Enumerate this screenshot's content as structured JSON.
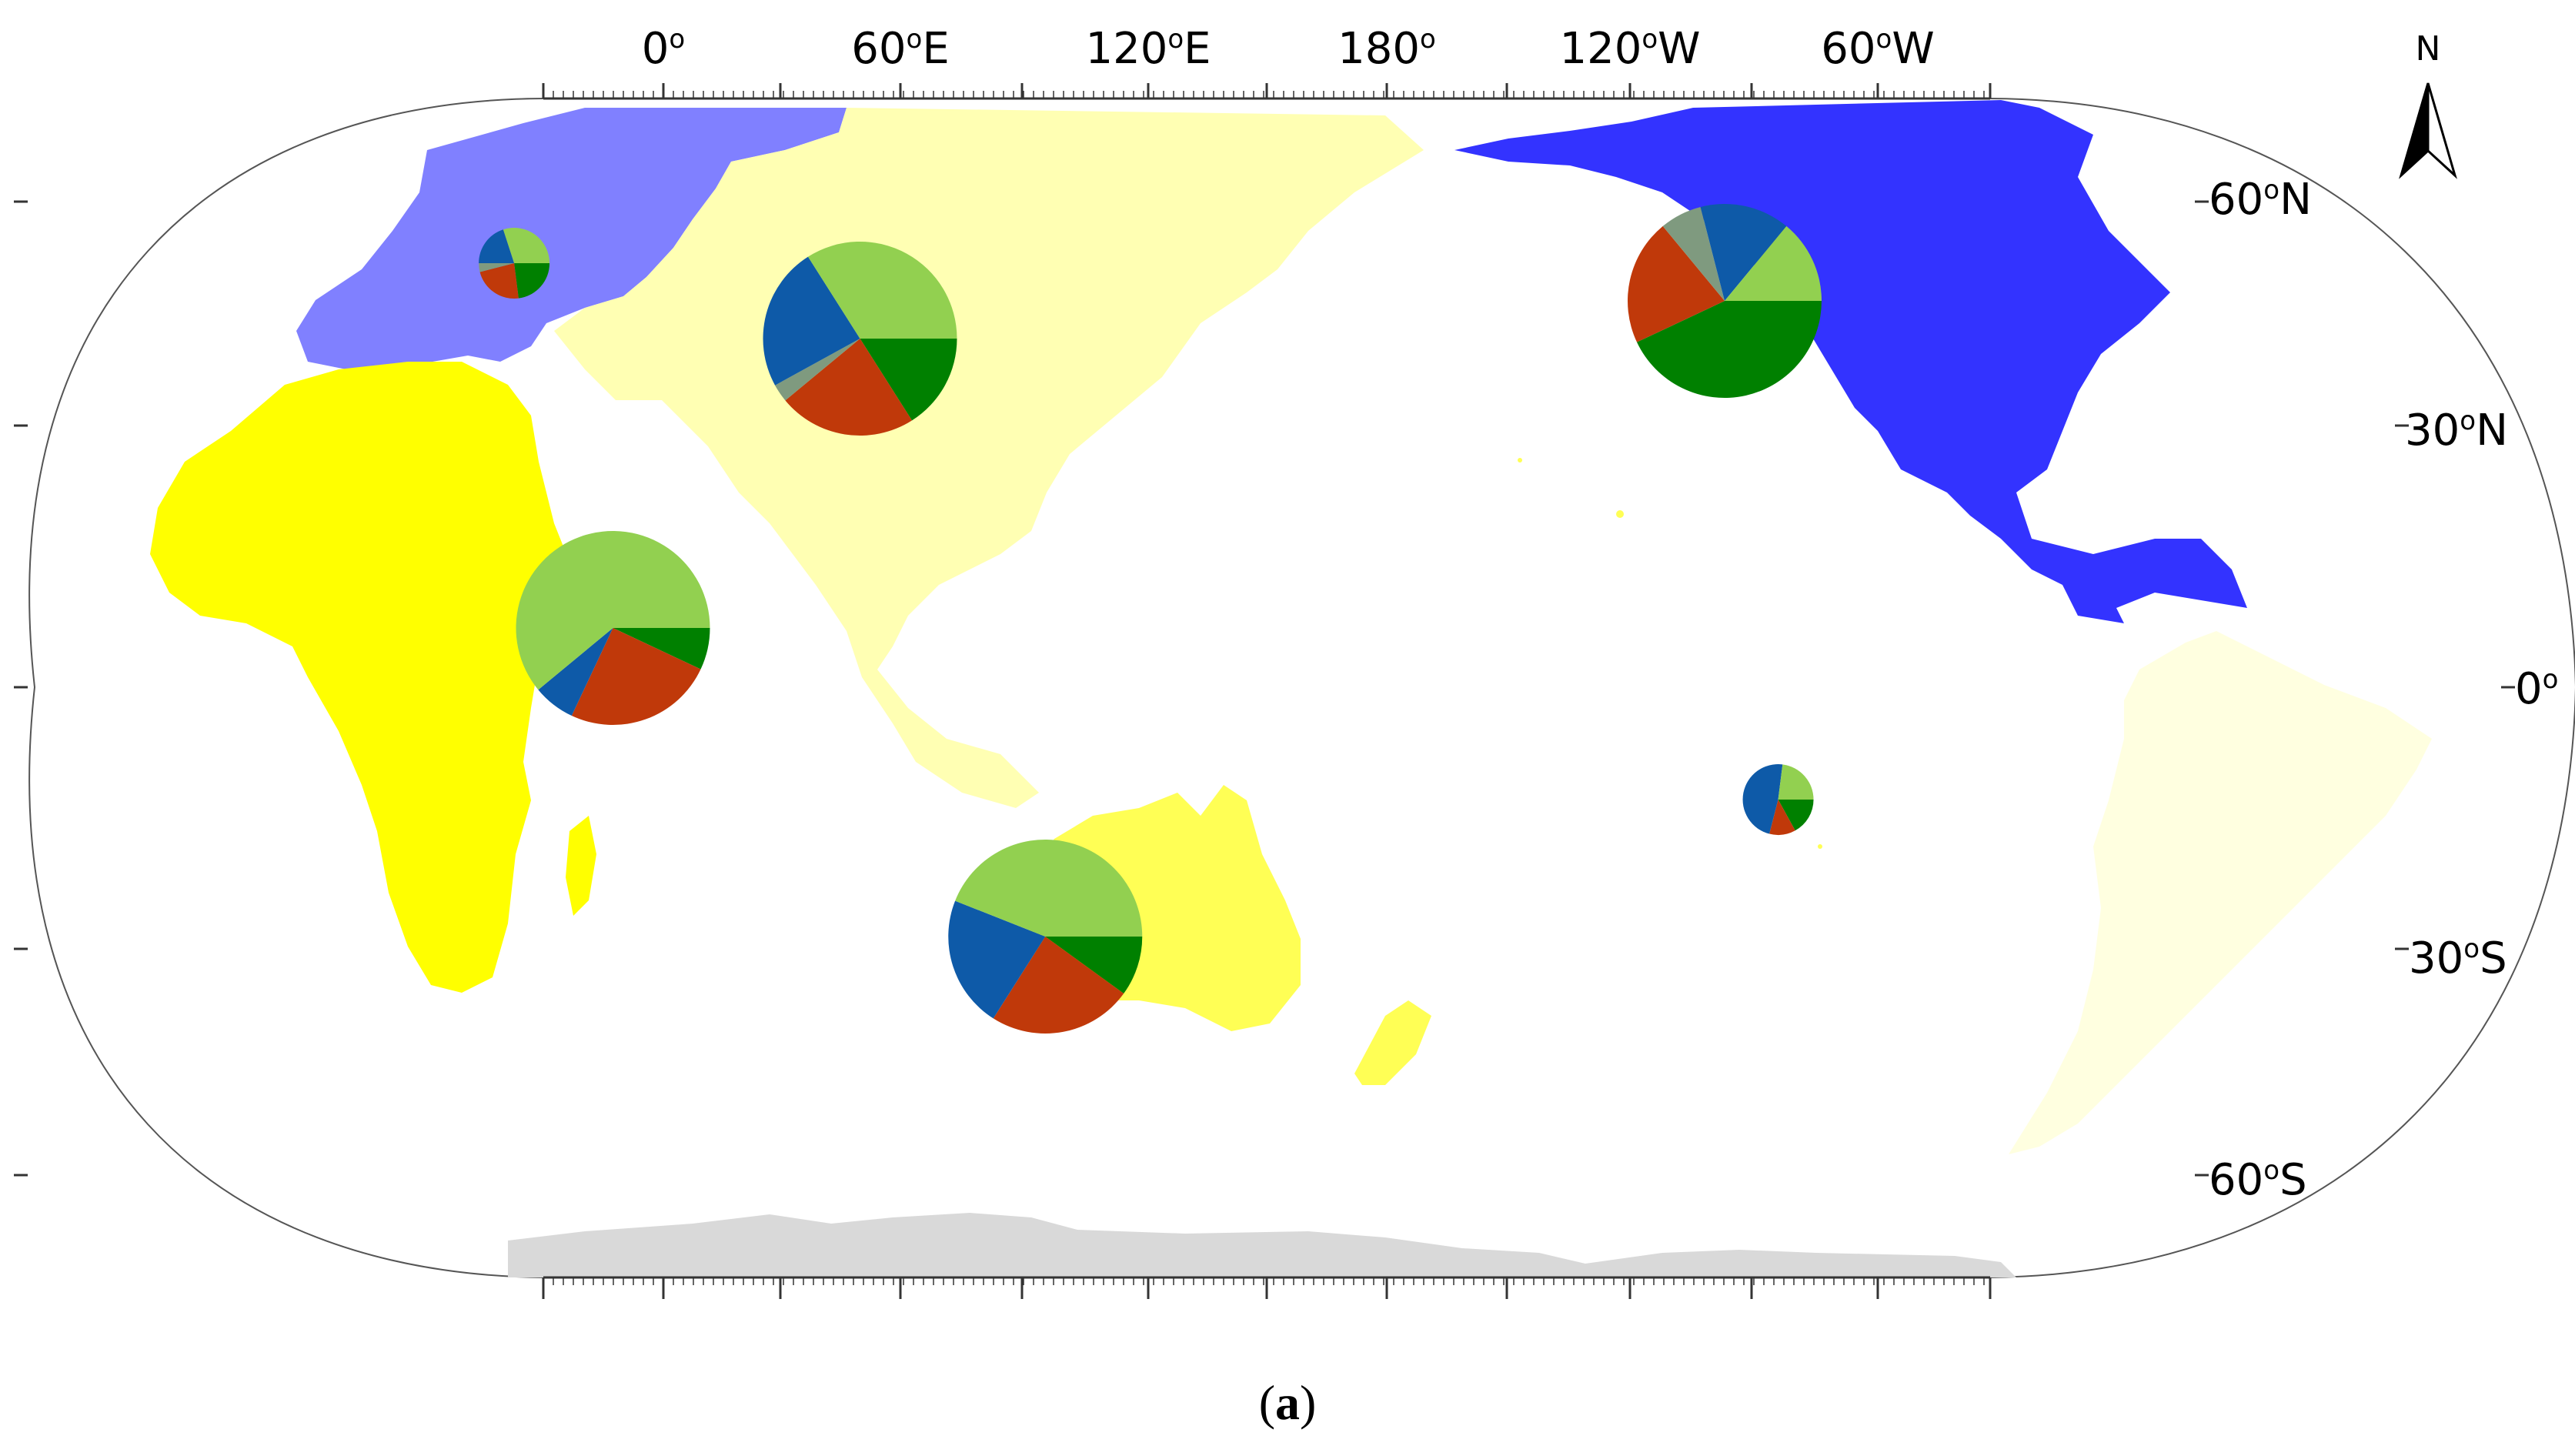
{
  "figure": {
    "panel_label_open": "(",
    "panel_label_letter": "a",
    "panel_label_close": ")",
    "north_label": "N"
  },
  "axes": {
    "top_longitude_labels": [
      {
        "value": 0,
        "number": "0",
        "suffix": ""
      },
      {
        "value": 60,
        "number": "60",
        "suffix": "E"
      },
      {
        "value": 120,
        "number": "120",
        "suffix": "E"
      },
      {
        "value": 180,
        "number": "180",
        "suffix": ""
      },
      {
        "value": -120,
        "number": "120",
        "suffix": "W"
      },
      {
        "value": -60,
        "number": "60",
        "suffix": "W"
      }
    ],
    "right_latitude_labels": [
      {
        "value": 60,
        "number": "60",
        "suffix": "N"
      },
      {
        "value": 30,
        "number": "30",
        "suffix": "N"
      },
      {
        "value": 0,
        "number": "0",
        "suffix": ""
      },
      {
        "value": -30,
        "number": "30",
        "suffix": "S"
      },
      {
        "value": -60,
        "number": "60",
        "suffix": "S"
      }
    ],
    "degree_symbol": "o",
    "projection": "Robinson, Pacific-centred (central meridian 150°E)"
  },
  "colors": {
    "europe": "#8080FF",
    "asia": "#FFFFB3",
    "africa": "#FFFF00",
    "oceania": "#FFFF55",
    "north_america": "#3333FF",
    "south_america": "#FFFFE0",
    "antarctica": "#D9D9D9",
    "slice_light_green": "#92D050",
    "slice_dark_green": "#008000",
    "slice_red": "#C0390A",
    "slice_grey": "#7F9A7F",
    "slice_blue": "#0E5AA8"
  },
  "chart_data": {
    "type": "pie",
    "pies": [
      {
        "region": "Europe",
        "lon": -4,
        "lat": 50,
        "size": "small",
        "slices": [
          {
            "category": "dark-green",
            "value": 23
          },
          {
            "category": "red",
            "value": 23
          },
          {
            "category": "grey",
            "value": 4
          },
          {
            "category": "blue",
            "value": 20
          },
          {
            "category": "light-green",
            "value": 30
          }
        ]
      },
      {
        "region": "Asia",
        "lon": 80,
        "lat": 40,
        "size": "large",
        "slices": [
          {
            "category": "dark-green",
            "value": 16
          },
          {
            "category": "red",
            "value": 23
          },
          {
            "category": "grey",
            "value": 3
          },
          {
            "category": "blue",
            "value": 24
          },
          {
            "category": "light-green",
            "value": 34
          }
        ]
      },
      {
        "region": "Africa",
        "lon": 20,
        "lat": 7,
        "size": "large",
        "slices": [
          {
            "category": "dark-green",
            "value": 7
          },
          {
            "category": "red",
            "value": 25
          },
          {
            "category": "blue",
            "value": 7
          },
          {
            "category": "light-green",
            "value": 61
          }
        ]
      },
      {
        "region": "Oceania",
        "lon": 125,
        "lat": -28,
        "size": "large",
        "slices": [
          {
            "category": "dark-green",
            "value": 10
          },
          {
            "category": "red",
            "value": 24
          },
          {
            "category": "blue",
            "value": 22
          },
          {
            "category": "light-green",
            "value": 44
          }
        ]
      },
      {
        "region": "North America",
        "lon": -70,
        "lat": 45,
        "size": "large",
        "slices": [
          {
            "category": "dark-green",
            "value": 43
          },
          {
            "category": "red",
            "value": 21
          },
          {
            "category": "grey",
            "value": 7
          },
          {
            "category": "blue",
            "value": 15
          },
          {
            "category": "light-green",
            "value": 14
          }
        ]
      },
      {
        "region": "South America",
        "lon": -57,
        "lat": -13,
        "size": "small",
        "slices": [
          {
            "category": "dark-green",
            "value": 17
          },
          {
            "category": "red",
            "value": 12
          },
          {
            "category": "blue",
            "value": 48
          },
          {
            "category": "light-green",
            "value": 23
          }
        ]
      }
    ]
  }
}
